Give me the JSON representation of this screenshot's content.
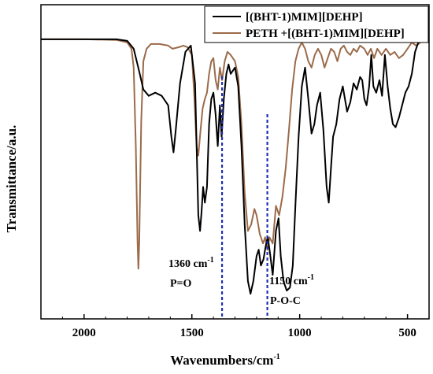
{
  "chart_data": {
    "type": "line",
    "xlabel": "Wavenumbers/cm",
    "xlabel_sup": "-1",
    "ylabel": "Transmittance/a.u.",
    "xlim": [
      2200,
      400
    ],
    "ylim": [
      0,
      1
    ],
    "x_reversed": true,
    "x_ticks": [
      2000,
      1500,
      1000,
      500
    ],
    "grid": false,
    "legend_position": "top-right",
    "series": [
      {
        "name": "[(BHT-1)MIM][DEHP]",
        "color": "#000000",
        "points": [
          [
            2200,
            0.89
          ],
          [
            2000,
            0.89
          ],
          [
            1850,
            0.89
          ],
          [
            1800,
            0.885
          ],
          [
            1770,
            0.86
          ],
          [
            1745,
            0.79
          ],
          [
            1725,
            0.73
          ],
          [
            1700,
            0.71
          ],
          [
            1670,
            0.72
          ],
          [
            1640,
            0.71
          ],
          [
            1610,
            0.68
          ],
          [
            1595,
            0.58
          ],
          [
            1585,
            0.53
          ],
          [
            1575,
            0.6
          ],
          [
            1555,
            0.75
          ],
          [
            1530,
            0.85
          ],
          [
            1505,
            0.87
          ],
          [
            1485,
            0.75
          ],
          [
            1470,
            0.33
          ],
          [
            1462,
            0.28
          ],
          [
            1455,
            0.34
          ],
          [
            1448,
            0.42
          ],
          [
            1440,
            0.37
          ],
          [
            1430,
            0.42
          ],
          [
            1420,
            0.62
          ],
          [
            1410,
            0.7
          ],
          [
            1400,
            0.72
          ],
          [
            1390,
            0.65
          ],
          [
            1380,
            0.55
          ],
          [
            1370,
            0.68
          ],
          [
            1362,
            0.58
          ],
          [
            1352,
            0.7
          ],
          [
            1340,
            0.78
          ],
          [
            1330,
            0.81
          ],
          [
            1320,
            0.78
          ],
          [
            1300,
            0.8
          ],
          [
            1285,
            0.74
          ],
          [
            1270,
            0.55
          ],
          [
            1255,
            0.3
          ],
          [
            1240,
            0.12
          ],
          [
            1228,
            0.08
          ],
          [
            1215,
            0.12
          ],
          [
            1200,
            0.2
          ],
          [
            1190,
            0.22
          ],
          [
            1180,
            0.17
          ],
          [
            1168,
            0.19
          ],
          [
            1158,
            0.23
          ],
          [
            1148,
            0.26
          ],
          [
            1138,
            0.21
          ],
          [
            1125,
            0.14
          ],
          [
            1110,
            0.28
          ],
          [
            1098,
            0.32
          ],
          [
            1088,
            0.2
          ],
          [
            1075,
            0.12
          ],
          [
            1060,
            0.09
          ],
          [
            1045,
            0.1
          ],
          [
            1032,
            0.17
          ],
          [
            1020,
            0.36
          ],
          [
            1005,
            0.58
          ],
          [
            990,
            0.74
          ],
          [
            975,
            0.8
          ],
          [
            960,
            0.7
          ],
          [
            945,
            0.59
          ],
          [
            932,
            0.62
          ],
          [
            920,
            0.68
          ],
          [
            905,
            0.72
          ],
          [
            890,
            0.6
          ],
          [
            875,
            0.42
          ],
          [
            865,
            0.37
          ],
          [
            855,
            0.48
          ],
          [
            845,
            0.58
          ],
          [
            830,
            0.62
          ],
          [
            815,
            0.7
          ],
          [
            800,
            0.74
          ],
          [
            780,
            0.66
          ],
          [
            765,
            0.69
          ],
          [
            750,
            0.75
          ],
          [
            735,
            0.73
          ],
          [
            720,
            0.77
          ],
          [
            710,
            0.76
          ],
          [
            700,
            0.7
          ],
          [
            690,
            0.68
          ],
          [
            678,
            0.74
          ],
          [
            668,
            0.84
          ],
          [
            658,
            0.74
          ],
          [
            645,
            0.72
          ],
          [
            630,
            0.76
          ],
          [
            618,
            0.71
          ],
          [
            605,
            0.84
          ],
          [
            592,
            0.74
          ],
          [
            580,
            0.67
          ],
          [
            568,
            0.62
          ],
          [
            555,
            0.61
          ],
          [
            540,
            0.64
          ],
          [
            525,
            0.68
          ],
          [
            510,
            0.72
          ],
          [
            495,
            0.74
          ],
          [
            480,
            0.78
          ],
          [
            465,
            0.85
          ],
          [
            450,
            0.88
          ],
          [
            430,
            0.89
          ],
          [
            410,
            0.89
          ]
        ]
      },
      {
        "name": "PETH +[(BHT-1)MIM][DEHP]",
        "color": "#9b6b4a",
        "points": [
          [
            2200,
            0.89
          ],
          [
            2000,
            0.89
          ],
          [
            1850,
            0.888
          ],
          [
            1800,
            0.88
          ],
          [
            1780,
            0.86
          ],
          [
            1770,
            0.8
          ],
          [
            1760,
            0.55
          ],
          [
            1752,
            0.25
          ],
          [
            1748,
            0.16
          ],
          [
            1744,
            0.25
          ],
          [
            1735,
            0.63
          ],
          [
            1725,
            0.82
          ],
          [
            1710,
            0.86
          ],
          [
            1690,
            0.875
          ],
          [
            1650,
            0.875
          ],
          [
            1610,
            0.87
          ],
          [
            1590,
            0.86
          ],
          [
            1560,
            0.865
          ],
          [
            1540,
            0.87
          ],
          [
            1520,
            0.865
          ],
          [
            1500,
            0.84
          ],
          [
            1488,
            0.7
          ],
          [
            1478,
            0.55
          ],
          [
            1470,
            0.52
          ],
          [
            1460,
            0.6
          ],
          [
            1450,
            0.67
          ],
          [
            1440,
            0.7
          ],
          [
            1430,
            0.72
          ],
          [
            1420,
            0.78
          ],
          [
            1410,
            0.82
          ],
          [
            1400,
            0.83
          ],
          [
            1390,
            0.76
          ],
          [
            1380,
            0.73
          ],
          [
            1370,
            0.8
          ],
          [
            1360,
            0.76
          ],
          [
            1348,
            0.82
          ],
          [
            1335,
            0.85
          ],
          [
            1320,
            0.84
          ],
          [
            1300,
            0.82
          ],
          [
            1285,
            0.77
          ],
          [
            1270,
            0.62
          ],
          [
            1255,
            0.4
          ],
          [
            1240,
            0.28
          ],
          [
            1225,
            0.3
          ],
          [
            1210,
            0.35
          ],
          [
            1200,
            0.33
          ],
          [
            1185,
            0.27
          ],
          [
            1170,
            0.24
          ],
          [
            1160,
            0.26
          ],
          [
            1150,
            0.22
          ],
          [
            1140,
            0.26
          ],
          [
            1125,
            0.24
          ],
          [
            1110,
            0.36
          ],
          [
            1095,
            0.33
          ],
          [
            1080,
            0.39
          ],
          [
            1065,
            0.48
          ],
          [
            1050,
            0.6
          ],
          [
            1035,
            0.73
          ],
          [
            1020,
            0.82
          ],
          [
            1005,
            0.86
          ],
          [
            990,
            0.88
          ],
          [
            975,
            0.86
          ],
          [
            960,
            0.82
          ],
          [
            945,
            0.8
          ],
          [
            930,
            0.84
          ],
          [
            915,
            0.86
          ],
          [
            900,
            0.84
          ],
          [
            885,
            0.8
          ],
          [
            870,
            0.83
          ],
          [
            855,
            0.86
          ],
          [
            840,
            0.85
          ],
          [
            825,
            0.82
          ],
          [
            810,
            0.86
          ],
          [
            795,
            0.87
          ],
          [
            780,
            0.85
          ],
          [
            765,
            0.84
          ],
          [
            750,
            0.86
          ],
          [
            735,
            0.85
          ],
          [
            720,
            0.87
          ],
          [
            700,
            0.86
          ],
          [
            685,
            0.84
          ],
          [
            670,
            0.86
          ],
          [
            655,
            0.83
          ],
          [
            640,
            0.86
          ],
          [
            620,
            0.84
          ],
          [
            600,
            0.86
          ],
          [
            580,
            0.84
          ],
          [
            560,
            0.85
          ],
          [
            540,
            0.83
          ],
          [
            520,
            0.84
          ],
          [
            500,
            0.86
          ],
          [
            480,
            0.88
          ],
          [
            460,
            0.87
          ],
          [
            440,
            0.88
          ],
          [
            420,
            0.89
          ],
          [
            410,
            0.89
          ]
        ]
      }
    ],
    "annotations": [
      {
        "x": 1360,
        "label": "1360 cm",
        "label_sup": "-1",
        "sublabel": "P=O",
        "line_color": "#1f2fb3"
      },
      {
        "x": 1150,
        "label": "1150 cm",
        "label_sup": "-1",
        "sublabel": "P-O-C",
        "line_color": "#1f2fb3"
      }
    ]
  }
}
